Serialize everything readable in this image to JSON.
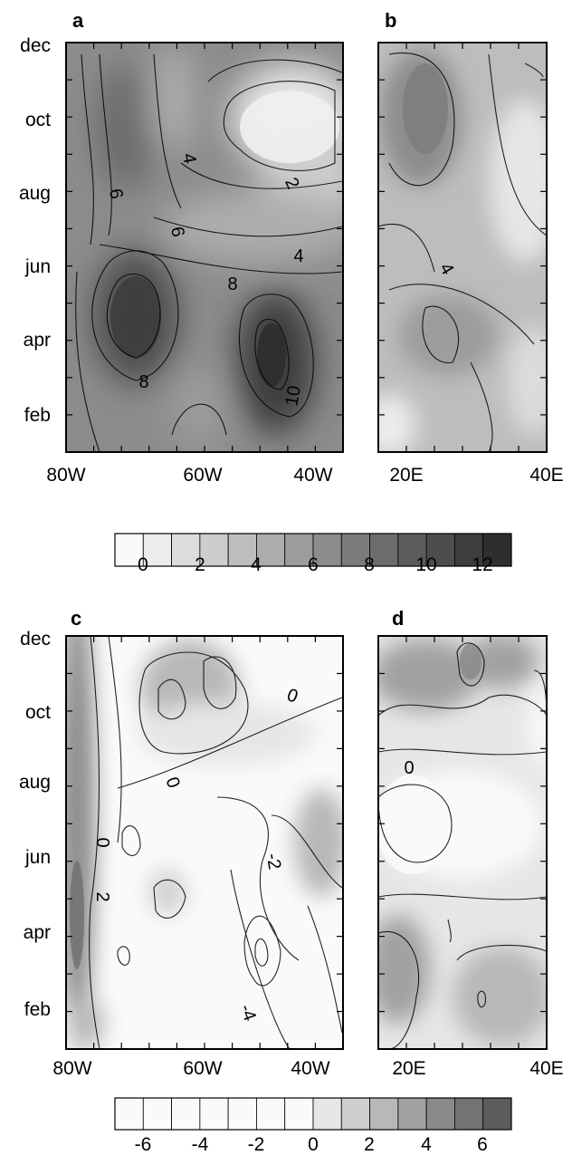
{
  "months": [
    "dec",
    "oct",
    "aug",
    "jun",
    "apr",
    "feb"
  ],
  "colors": {
    "scale_top": [
      "#f9f9f9",
      "#ececec",
      "#dcdcdc",
      "#cdcdcd",
      "#bdbdbd",
      "#adadad",
      "#9c9c9c",
      "#8c8c8c",
      "#7c7c7c",
      "#6c6c6c",
      "#5c5c5c",
      "#4d4d4d",
      "#3d3d3d",
      "#2e2e2e"
    ],
    "scale_bottom": [
      "#fafafa",
      "#fafafa",
      "#fafafa",
      "#fafafa",
      "#fafafa",
      "#fafafa",
      "#fafafa",
      "#e6e6e6",
      "#cfcfcf",
      "#b8b8b8",
      "#a1a1a1",
      "#8a8a8a",
      "#737373",
      "#5c5c5c"
    ]
  },
  "chart_data": [
    {
      "type": "heatmap",
      "panel": "a",
      "x_ticks": [
        "80W",
        "60W",
        "40W"
      ],
      "y_ticks": [
        "dec",
        "oct",
        "aug",
        "jun",
        "apr",
        "feb"
      ],
      "contour_labels": [
        "4",
        "2",
        "6",
        "6",
        "4",
        "8",
        "8",
        "10"
      ]
    },
    {
      "type": "heatmap",
      "panel": "b",
      "x_ticks": [
        "20E",
        "40E"
      ],
      "y_ticks": [],
      "contour_labels": [
        "4"
      ]
    },
    {
      "type": "heatmap",
      "panel": "c",
      "x_ticks": [
        "80W",
        "60W",
        "40W"
      ],
      "y_ticks": [
        "dec",
        "oct",
        "aug",
        "jun",
        "apr",
        "feb"
      ],
      "contour_labels": [
        "0",
        "0",
        "0",
        "-2",
        "2",
        "-4"
      ]
    },
    {
      "type": "heatmap",
      "panel": "d",
      "x_ticks": [
        "20E",
        "40E"
      ],
      "y_ticks": [],
      "contour_labels": [
        "0"
      ]
    }
  ],
  "colorbar_top": {
    "labels": [
      "0",
      "2",
      "4",
      "6",
      "8",
      "10",
      "12"
    ]
  },
  "colorbar_bottom": {
    "labels": [
      "-6",
      "-4",
      "-2",
      "0",
      "2",
      "4",
      "6"
    ]
  }
}
